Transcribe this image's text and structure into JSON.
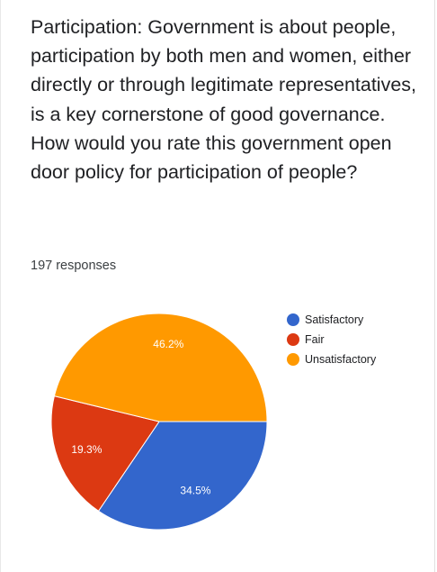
{
  "question": "Participation: Government is about people, participation by both men and women, either directly or through legitimate representatives, is a key cornerstone of good governance. How would you rate this government open door policy for participation of people?",
  "responses_text": "197 responses",
  "chart_data": {
    "type": "pie",
    "categories": [
      "Satisfactory",
      "Fair",
      "Unsatisfactory"
    ],
    "values": [
      34.5,
      19.3,
      46.2
    ],
    "value_labels": [
      "34.5%",
      "19.3%",
      "46.2%"
    ],
    "colors": [
      "#3366cc",
      "#dc3912",
      "#ff9900"
    ],
    "label_colors": [
      "#ffffff",
      "#ffffff",
      "#ffffff"
    ],
    "legend_position": "right"
  }
}
